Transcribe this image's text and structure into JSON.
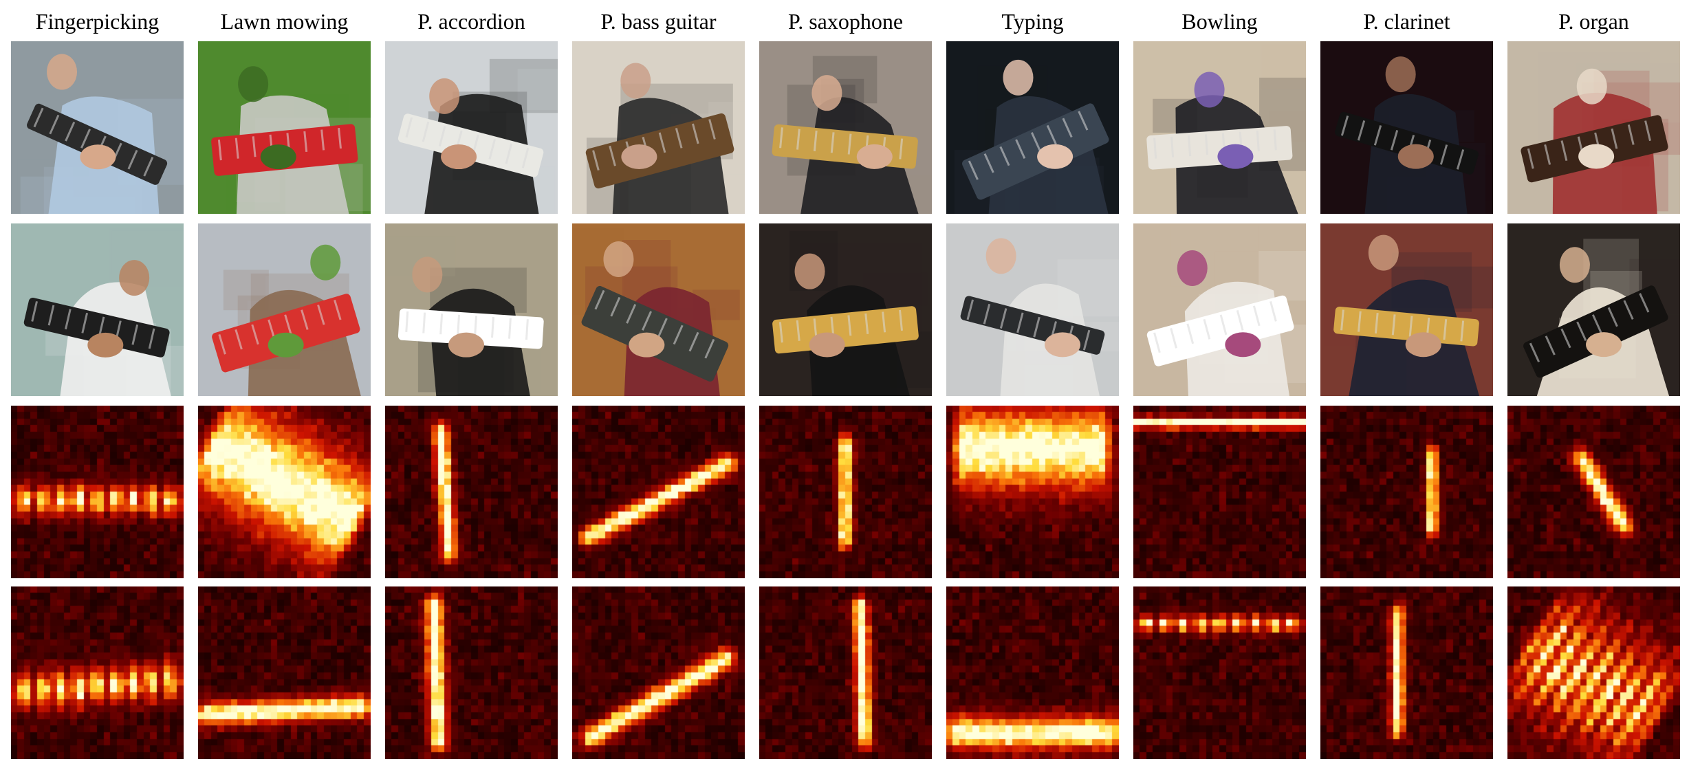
{
  "figure": {
    "columns": [
      {
        "label": "Fingerpicking",
        "frames": [
          {
            "scene": "person-fingerpicking-guitar-close",
            "colors": {
              "bg": "#8f9aa0",
              "subject": "#b0c9e0",
              "object": "#2b2b2b",
              "skin": "#d7a88a"
            }
          },
          {
            "scene": "person-playing-acoustic-guitar",
            "colors": {
              "bg": "#9fb8b2",
              "subject": "#f0f0ee",
              "object": "#1e1e1e",
              "skin": "#b88460"
            }
          }
        ],
        "heatmaps": [
          {
            "pattern": "horizontal-band-mid",
            "band": {
              "angle": 0,
              "pos": 0.55,
              "len": 0.95,
              "width": 0.13,
              "beads": true
            }
          },
          {
            "pattern": "horizontal-band-mid-slanted",
            "band": {
              "angle": -4,
              "pos": 0.58,
              "len": 0.95,
              "width": 0.16,
              "beads": true
            }
          }
        ]
      },
      {
        "label": "Lawn mowing",
        "frames": [
          {
            "scene": "red-lawn-mower-on-grass",
            "colors": {
              "bg": "#4f8a2e",
              "subject": "#c9c9c4",
              "object": "#d0262a",
              "skin": "#3c6b22"
            }
          },
          {
            "scene": "lawn-mower-in-front-of-houses",
            "colors": {
              "bg": "#b7bcc2",
              "subject": "#8a6a52",
              "object": "#d8322e",
              "skin": "#5f9a3a"
            }
          }
        ],
        "heatmaps": [
          {
            "pattern": "diffuse-upper-diagonal",
            "band": {
              "angle": 30,
              "pos": 0.45,
              "len": 0.9,
              "width": 0.45,
              "beads": false
            }
          },
          {
            "pattern": "horizontal-band-lower",
            "band": {
              "angle": -3,
              "pos": 0.72,
              "len": 0.9,
              "width": 0.1,
              "beads": false
            }
          }
        ]
      },
      {
        "label": "P. accordion",
        "frames": [
          {
            "scene": "man-playing-accordion",
            "colors": {
              "bg": "#cfd3d6",
              "subject": "#1c1c1c",
              "object": "#e9e9e4",
              "skin": "#c99477"
            }
          },
          {
            "scene": "man-playing-accordion-in-library",
            "colors": {
              "bg": "#a9a089",
              "subject": "#1a1a1a",
              "object": "#ffffff",
              "skin": "#c69a7c"
            }
          }
        ],
        "heatmaps": [
          {
            "pattern": "vertical-streak-left",
            "band": {
              "angle": 86,
              "pos": 0.35,
              "len": 0.7,
              "width": 0.07,
              "beads": false
            }
          },
          {
            "pattern": "vertical-streaks",
            "band": {
              "angle": 88,
              "pos": 0.3,
              "len": 0.8,
              "width": 0.08,
              "beads": false
            }
          }
        ]
      },
      {
        "label": "P. bass guitar",
        "frames": [
          {
            "scene": "hands-playing-bass-guitar",
            "colors": {
              "bg": "#d9d2c6",
              "subject": "#2a2a2a",
              "object": "#6a4a2a",
              "skin": "#c9a08a"
            }
          },
          {
            "scene": "man-playing-bass-guitar",
            "colors": {
              "bg": "#a86c34",
              "subject": "#7a2530",
              "object": "#3c3f3a",
              "skin": "#d1a584"
            }
          }
        ],
        "heatmaps": [
          {
            "pattern": "diagonal-streak",
            "band": {
              "angle": -28,
              "pos": 0.55,
              "len": 0.9,
              "width": 0.08,
              "beads": false
            }
          },
          {
            "pattern": "diagonal-streak-lower",
            "band": {
              "angle": -30,
              "pos": 0.65,
              "len": 0.9,
              "width": 0.09,
              "beads": false
            }
          }
        ]
      },
      {
        "label": "P. saxophone",
        "frames": [
          {
            "scene": "man-with-saxophone-speaking",
            "colors": {
              "bg": "#9a8f86",
              "subject": "#1f1f22",
              "object": "#caa14a",
              "skin": "#d8ad92"
            }
          },
          {
            "scene": "man-playing-saxophone-stage",
            "colors": {
              "bg": "#2a2320",
              "subject": "#141414",
              "object": "#d6a848",
              "skin": "#c8987a"
            }
          }
        ],
        "heatmaps": [
          {
            "pattern": "vertical-streak-center",
            "band": {
              "angle": 90,
              "pos": 0.5,
              "len": 0.55,
              "width": 0.06,
              "beads": false
            }
          },
          {
            "pattern": "vertical-streaks",
            "band": {
              "angle": 88,
              "pos": 0.6,
              "len": 0.75,
              "width": 0.07,
              "beads": false
            }
          }
        ]
      },
      {
        "label": "Typing",
        "frames": [
          {
            "scene": "hand-typing-on-laptop",
            "colors": {
              "bg": "#14191e",
              "subject": "#2a3340",
              "object": "#3a4552",
              "skin": "#e4c2ae"
            }
          },
          {
            "scene": "hands-typing-on-keyboard",
            "colors": {
              "bg": "#c9cbcc",
              "subject": "#e4e4e2",
              "object": "#2a2c2e",
              "skin": "#dcb49b"
            }
          }
        ],
        "heatmaps": [
          {
            "pattern": "upper-left-blob",
            "band": {
              "angle": 0,
              "pos": 0.25,
              "len": 0.8,
              "width": 0.35,
              "beads": false
            }
          },
          {
            "pattern": "lower-mound",
            "band": {
              "angle": 0,
              "pos": 0.85,
              "len": 0.9,
              "width": 0.14,
              "beads": false
            }
          }
        ]
      },
      {
        "label": "Bowling",
        "frames": [
          {
            "scene": "child-walking-in-bowling-alley",
            "colors": {
              "bg": "#cdbfa8",
              "subject": "#1e1e24",
              "object": "#e8e4dc",
              "skin": "#7a5fb4"
            }
          },
          {
            "scene": "bowling-alley-lanes",
            "colors": {
              "bg": "#c8b7a1",
              "subject": "#ece9e3",
              "object": "#ffffff",
              "skin": "#a64a7c"
            }
          }
        ],
        "heatmaps": [
          {
            "pattern": "top-thin-band",
            "band": {
              "angle": 0,
              "pos": 0.1,
              "len": 0.95,
              "width": 0.05,
              "beads": false
            }
          },
          {
            "pattern": "upper-thin-band",
            "band": {
              "angle": 0,
              "pos": 0.22,
              "len": 0.9,
              "width": 0.07,
              "beads": true
            }
          }
        ]
      },
      {
        "label": "P. clarinet",
        "frames": [
          {
            "scene": "man-playing-clarinet-dark",
            "colors": {
              "bg": "#1b0c10",
              "subject": "#1c1f2a",
              "object": "#121212",
              "skin": "#9c6e56"
            }
          },
          {
            "scene": "man-playing-saxophone-orchestra",
            "colors": {
              "bg": "#7a3a30",
              "subject": "#1d2233",
              "object": "#d6a848",
              "skin": "#c8987a"
            }
          }
        ],
        "heatmaps": [
          {
            "pattern": "small-spot-upper-right",
            "band": {
              "angle": 90,
              "pos": 0.65,
              "len": 0.4,
              "width": 0.05,
              "beads": false
            }
          },
          {
            "pattern": "vertical-streak-center",
            "band": {
              "angle": 90,
              "pos": 0.45,
              "len": 0.65,
              "width": 0.06,
              "beads": false
            }
          }
        ]
      },
      {
        "label": "P. organ",
        "frames": [
          {
            "scene": "man-playing-organ",
            "colors": {
              "bg": "#c4b8a6",
              "subject": "#a03030",
              "object": "#3a2418",
              "skin": "#e8d9c8"
            }
          },
          {
            "scene": "organ-keyboards-hands",
            "colors": {
              "bg": "#2a2420",
              "subject": "#efe7d7",
              "object": "#141210",
              "skin": "#d6b090"
            }
          }
        ],
        "heatmaps": [
          {
            "pattern": "diagonal-streak-center",
            "band": {
              "angle": 58,
              "pos": 0.55,
              "len": 0.45,
              "width": 0.08,
              "beads": false
            }
          },
          {
            "pattern": "diagonal-striped-block",
            "band": {
              "angle": 32,
              "pos": 0.55,
              "len": 0.75,
              "width": 0.5,
              "beads": true
            }
          }
        ]
      }
    ]
  }
}
